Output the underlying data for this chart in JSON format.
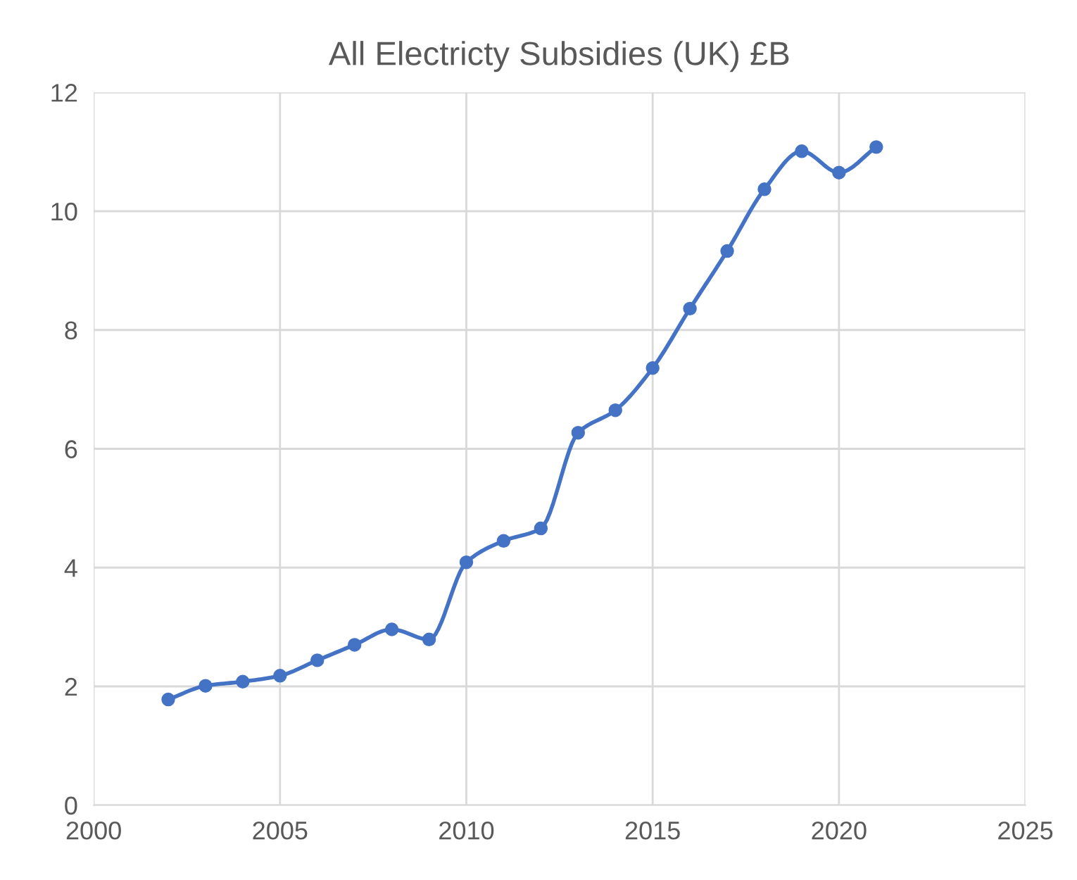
{
  "chart_data": {
    "type": "line",
    "title": "All Electricty Subsidies (UK) £B",
    "x": [
      2002,
      2003,
      2004,
      2005,
      2006,
      2007,
      2008,
      2009,
      2010,
      2011,
      2012,
      2013,
      2014,
      2015,
      2016,
      2017,
      2018,
      2019,
      2020,
      2021
    ],
    "series": [
      {
        "color": "#4472c4",
        "values": [
          1.78,
          2.01,
          2.08,
          2.18,
          2.44,
          2.7,
          2.96,
          2.79,
          4.09,
          4.45,
          4.66,
          6.27,
          6.65,
          7.36,
          8.36,
          9.33,
          10.37,
          11.01,
          10.65,
          11.08
        ]
      }
    ],
    "xlim": [
      2000,
      2025
    ],
    "xticks": [
      2000,
      2005,
      2010,
      2015,
      2020,
      2025
    ],
    "ylim": [
      0,
      12
    ],
    "yticks": [
      0,
      2,
      4,
      6,
      8,
      10,
      12
    ],
    "grid": true,
    "marker": "circle",
    "line_style": "solid"
  }
}
